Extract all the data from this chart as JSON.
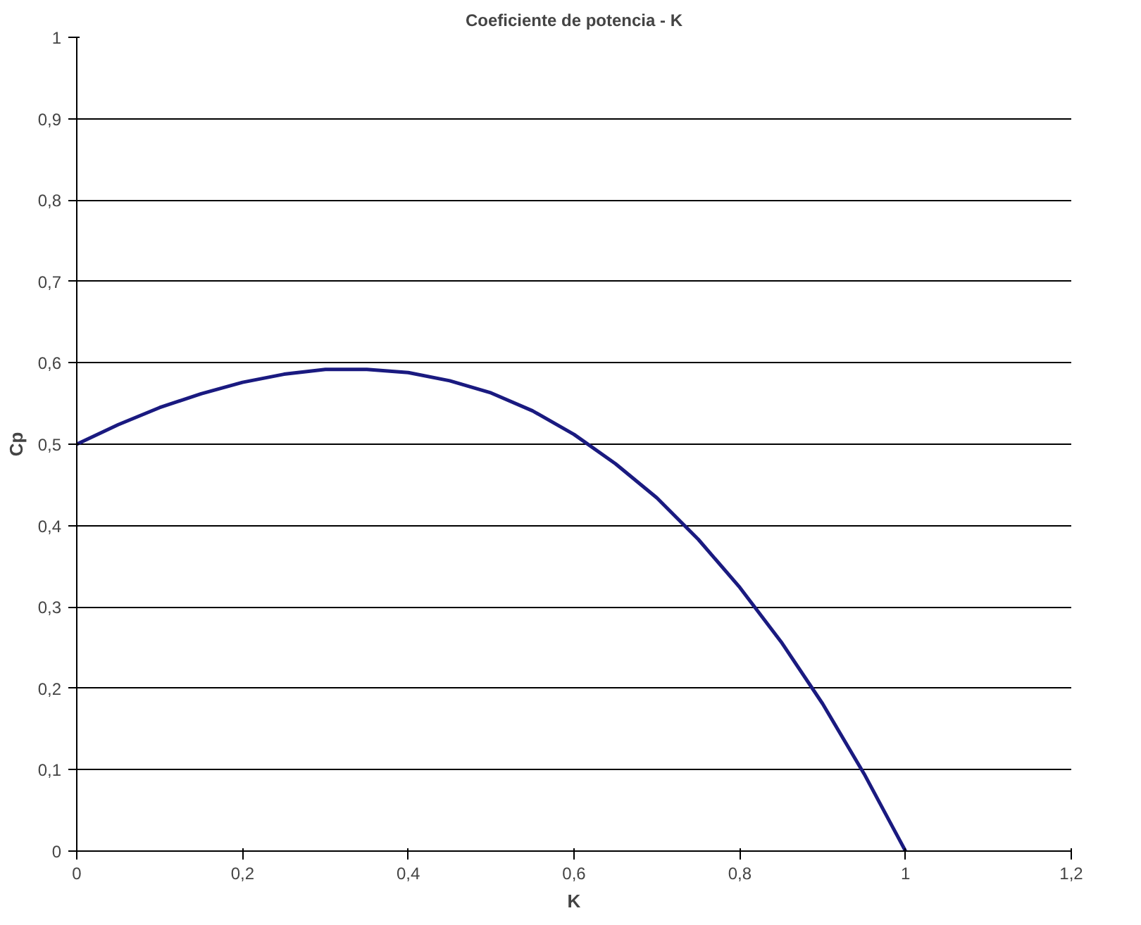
{
  "chart_data": {
    "type": "line",
    "title": "Coeficiente de potencia - K",
    "xlabel": "K",
    "ylabel": "Cp",
    "x": [
      0,
      0.05,
      0.1,
      0.15,
      0.2,
      0.25,
      0.3,
      0.35,
      0.4,
      0.45,
      0.5,
      0.55,
      0.6,
      0.65,
      0.7,
      0.75,
      0.8,
      0.85,
      0.9,
      0.95,
      1
    ],
    "series": [
      {
        "color": "#1a1a80",
        "values": [
          0.5,
          0.524,
          0.545,
          0.562,
          0.576,
          0.586,
          0.592,
          0.592,
          0.588,
          0.578,
          0.563,
          0.541,
          0.512,
          0.476,
          0.434,
          0.383,
          0.324,
          0.257,
          0.181,
          0.095,
          0
        ]
      }
    ],
    "xlim": [
      0,
      1.2
    ],
    "ylim": [
      0,
      1
    ],
    "xticks": [
      0,
      {
        "value": 0.2,
        "label": "0,2"
      },
      {
        "value": 0.4,
        "label": "0,4"
      },
      {
        "value": 0.6,
        "label": "0,6"
      },
      {
        "value": 0.8,
        "label": "0,8"
      },
      1,
      {
        "value": 1.2,
        "label": "1,2"
      }
    ],
    "yticks": [
      0,
      {
        "value": 0.1,
        "label": "0,1"
      },
      {
        "value": 0.2,
        "label": "0,2"
      },
      {
        "value": 0.3,
        "label": "0,3"
      },
      {
        "value": 0.4,
        "label": "0,4"
      },
      {
        "value": 0.5,
        "label": "0,5"
      },
      {
        "value": 0.6,
        "label": "0,6"
      },
      {
        "value": 0.7,
        "label": "0,7"
      },
      {
        "value": 0.8,
        "label": "0,8"
      },
      {
        "value": 0.9,
        "label": "0,9"
      },
      1
    ],
    "grid": "y",
    "marker": "none",
    "line_style": "solid"
  }
}
